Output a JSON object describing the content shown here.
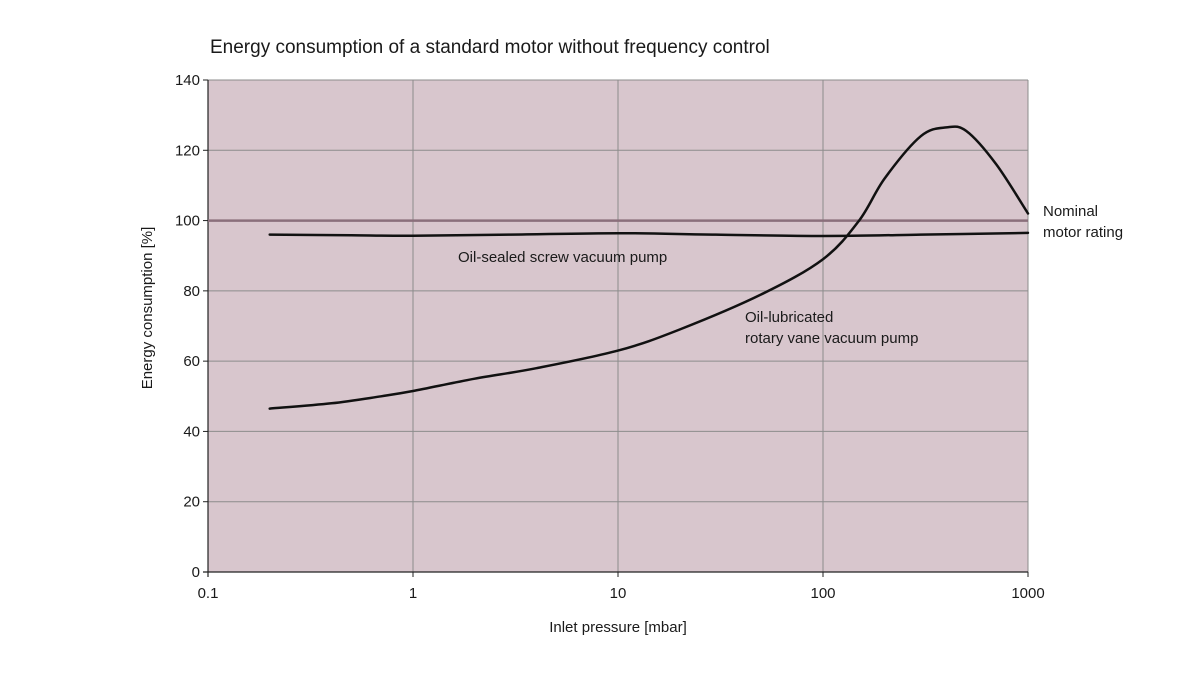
{
  "chart_data": {
    "type": "line",
    "title": "Energy consumption of a standard motor without frequency control",
    "xlabel": "Inlet pressure [mbar]",
    "ylabel": "Energy consumption [%]",
    "x_scale": "log",
    "xlim": [
      0.1,
      1000
    ],
    "ylim": [
      0,
      140
    ],
    "x_ticks": [
      0.1,
      1,
      10,
      100,
      1000
    ],
    "x_tick_labels": [
      "0.1",
      "1",
      "10",
      "100",
      "1000"
    ],
    "y_ticks": [
      0,
      20,
      40,
      60,
      80,
      100,
      120,
      140
    ],
    "y_tick_labels": [
      "0",
      "20",
      "40",
      "60",
      "80",
      "100",
      "120",
      "140"
    ],
    "grid": true,
    "plot_background": "#d8c6cd",
    "grid_color": "#8c8c8c",
    "reference_line": {
      "y": 100,
      "color": "#8a6f7b",
      "label_lines": [
        "Nominal",
        "motor rating"
      ]
    },
    "series": [
      {
        "label_lines": [
          "Oil-sealed screw vacuum pump"
        ],
        "x": [
          0.2,
          0.5,
          1,
          3,
          10,
          30,
          100,
          300,
          1000
        ],
        "y": [
          96,
          95.8,
          95.7,
          96,
          96.4,
          96,
          95.6,
          96,
          96.5
        ]
      },
      {
        "label_lines": [
          "Oil-lubricated",
          "rotary vane vacuum pump"
        ],
        "x": [
          0.2,
          0.4,
          0.7,
          1,
          2,
          4,
          10,
          20,
          50,
          100,
          150,
          200,
          300,
          400,
          500,
          700,
          1000
        ],
        "y": [
          46.5,
          48,
          50,
          51.5,
          55,
          58,
          63,
          69,
          79,
          89,
          100,
          112,
          124,
          126.5,
          125.5,
          116,
          102
        ]
      }
    ],
    "line_color": "#111111"
  }
}
